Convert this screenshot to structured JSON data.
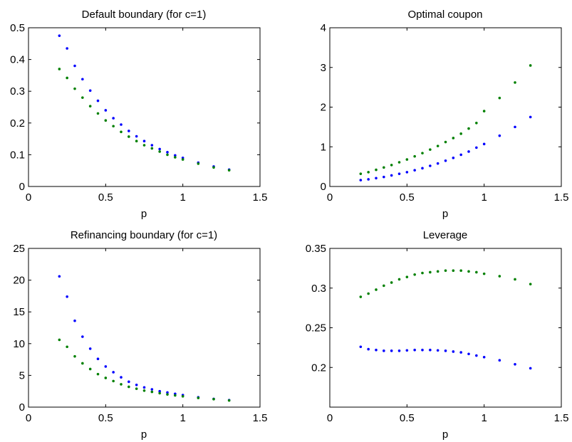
{
  "chart_data": [
    {
      "type": "scatter",
      "title": "Default boundary (for c=1)",
      "xlabel": "p",
      "ylabel": "",
      "xlim": [
        0,
        1.5
      ],
      "ylim": [
        0,
        0.5
      ],
      "xticks": [
        "0",
        "0.5",
        "1",
        "1.5"
      ],
      "yticks": [
        "0",
        "0.1",
        "0.2",
        "0.3",
        "0.4",
        "0.5"
      ],
      "series": [
        {
          "color": "#0000ff",
          "points": [
            [
              0.2,
              0.475
            ],
            [
              0.25,
              0.435
            ],
            [
              0.3,
              0.38
            ],
            [
              0.35,
              0.338
            ],
            [
              0.4,
              0.302
            ],
            [
              0.45,
              0.27
            ],
            [
              0.5,
              0.24
            ],
            [
              0.55,
              0.215
            ],
            [
              0.6,
              0.195
            ],
            [
              0.65,
              0.175
            ],
            [
              0.7,
              0.158
            ],
            [
              0.75,
              0.143
            ],
            [
              0.8,
              0.13
            ],
            [
              0.85,
              0.118
            ],
            [
              0.9,
              0.108
            ],
            [
              0.95,
              0.098
            ],
            [
              1.0,
              0.09
            ],
            [
              1.1,
              0.075
            ],
            [
              1.2,
              0.063
            ],
            [
              1.3,
              0.053
            ]
          ]
        },
        {
          "color": "#008000",
          "points": [
            [
              0.2,
              0.37
            ],
            [
              0.25,
              0.342
            ],
            [
              0.3,
              0.308
            ],
            [
              0.35,
              0.28
            ],
            [
              0.4,
              0.253
            ],
            [
              0.45,
              0.23
            ],
            [
              0.5,
              0.208
            ],
            [
              0.55,
              0.19
            ],
            [
              0.6,
              0.172
            ],
            [
              0.65,
              0.157
            ],
            [
              0.7,
              0.143
            ],
            [
              0.75,
              0.13
            ],
            [
              0.8,
              0.12
            ],
            [
              0.85,
              0.11
            ],
            [
              0.9,
              0.1
            ],
            [
              0.95,
              0.092
            ],
            [
              1.0,
              0.085
            ],
            [
              1.1,
              0.072
            ],
            [
              1.2,
              0.06
            ],
            [
              1.3,
              0.051
            ]
          ]
        }
      ]
    },
    {
      "type": "scatter",
      "title": "Optimal coupon",
      "xlabel": "p",
      "ylabel": "",
      "xlim": [
        0,
        1.5
      ],
      "ylim": [
        0,
        4
      ],
      "xticks": [
        "0",
        "0.5",
        "1",
        "1.5"
      ],
      "yticks": [
        "0",
        "1",
        "2",
        "3",
        "4"
      ],
      "series": [
        {
          "color": "#0000ff",
          "points": [
            [
              0.2,
              0.16
            ],
            [
              0.25,
              0.18
            ],
            [
              0.3,
              0.21
            ],
            [
              0.35,
              0.24
            ],
            [
              0.4,
              0.28
            ],
            [
              0.45,
              0.32
            ],
            [
              0.5,
              0.36
            ],
            [
              0.55,
              0.41
            ],
            [
              0.6,
              0.46
            ],
            [
              0.65,
              0.52
            ],
            [
              0.7,
              0.58
            ],
            [
              0.75,
              0.65
            ],
            [
              0.8,
              0.72
            ],
            [
              0.85,
              0.8
            ],
            [
              0.9,
              0.88
            ],
            [
              0.95,
              0.98
            ],
            [
              1.0,
              1.07
            ],
            [
              1.1,
              1.28
            ],
            [
              1.2,
              1.5
            ],
            [
              1.3,
              1.75
            ]
          ]
        },
        {
          "color": "#008000",
          "points": [
            [
              0.2,
              0.32
            ],
            [
              0.25,
              0.36
            ],
            [
              0.3,
              0.42
            ],
            [
              0.35,
              0.48
            ],
            [
              0.4,
              0.54
            ],
            [
              0.45,
              0.61
            ],
            [
              0.5,
              0.68
            ],
            [
              0.55,
              0.76
            ],
            [
              0.6,
              0.84
            ],
            [
              0.65,
              0.93
            ],
            [
              0.7,
              1.02
            ],
            [
              0.75,
              1.12
            ],
            [
              0.8,
              1.22
            ],
            [
              0.85,
              1.33
            ],
            [
              0.9,
              1.46
            ],
            [
              0.95,
              1.6
            ],
            [
              1.0,
              1.9
            ],
            [
              1.1,
              2.23
            ],
            [
              1.2,
              2.62
            ],
            [
              1.3,
              3.05
            ]
          ]
        }
      ]
    },
    {
      "type": "scatter",
      "title": "Refinancing boundary (for c=1)",
      "xlabel": "p",
      "ylabel": "",
      "xlim": [
        0,
        1.5
      ],
      "ylim": [
        0,
        25
      ],
      "xticks": [
        "0",
        "0.5",
        "1",
        "1.5"
      ],
      "yticks": [
        "0",
        "5",
        "10",
        "15",
        "20",
        "25"
      ],
      "series": [
        {
          "color": "#0000ff",
          "points": [
            [
              0.2,
              20.6
            ],
            [
              0.25,
              17.4
            ],
            [
              0.3,
              13.6
            ],
            [
              0.35,
              11.1
            ],
            [
              0.4,
              9.2
            ],
            [
              0.45,
              7.6
            ],
            [
              0.5,
              6.4
            ],
            [
              0.55,
              5.5
            ],
            [
              0.6,
              4.7
            ],
            [
              0.65,
              4.0
            ],
            [
              0.7,
              3.5
            ],
            [
              0.75,
              3.1
            ],
            [
              0.8,
              2.8
            ],
            [
              0.85,
              2.5
            ],
            [
              0.9,
              2.3
            ],
            [
              0.95,
              2.1
            ],
            [
              1.0,
              1.9
            ],
            [
              1.1,
              1.55
            ],
            [
              1.2,
              1.3
            ],
            [
              1.3,
              1.1
            ]
          ]
        },
        {
          "color": "#008000",
          "points": [
            [
              0.2,
              10.6
            ],
            [
              0.25,
              9.5
            ],
            [
              0.3,
              8.0
            ],
            [
              0.35,
              6.9
            ],
            [
              0.4,
              6.0
            ],
            [
              0.45,
              5.2
            ],
            [
              0.5,
              4.6
            ],
            [
              0.55,
              4.1
            ],
            [
              0.6,
              3.6
            ],
            [
              0.65,
              3.2
            ],
            [
              0.7,
              2.9
            ],
            [
              0.75,
              2.6
            ],
            [
              0.8,
              2.4
            ],
            [
              0.85,
              2.2
            ],
            [
              0.9,
              2.0
            ],
            [
              0.95,
              1.85
            ],
            [
              1.0,
              1.7
            ],
            [
              1.1,
              1.45
            ],
            [
              1.2,
              1.25
            ],
            [
              1.3,
              1.05
            ]
          ]
        }
      ]
    },
    {
      "type": "scatter",
      "title": "Leverage",
      "xlabel": "p",
      "ylabel": "",
      "xlim": [
        0,
        1.5
      ],
      "ylim": [
        0.15,
        0.35
      ],
      "xticks": [
        "0",
        "0.5",
        "1",
        "1.5"
      ],
      "yticks": [
        "0.2",
        "0.25",
        "0.3",
        "0.35"
      ],
      "ytick_values": [
        0.2,
        0.25,
        0.3,
        0.35
      ],
      "series": [
        {
          "color": "#0000ff",
          "points": [
            [
              0.2,
              0.226
            ],
            [
              0.25,
              0.223
            ],
            [
              0.3,
              0.222
            ],
            [
              0.35,
              0.221
            ],
            [
              0.4,
              0.221
            ],
            [
              0.45,
              0.221
            ],
            [
              0.5,
              0.2215
            ],
            [
              0.55,
              0.222
            ],
            [
              0.6,
              0.222
            ],
            [
              0.65,
              0.222
            ],
            [
              0.7,
              0.2215
            ],
            [
              0.75,
              0.221
            ],
            [
              0.8,
              0.22
            ],
            [
              0.85,
              0.219
            ],
            [
              0.9,
              0.217
            ],
            [
              0.95,
              0.215
            ],
            [
              1.0,
              0.213
            ],
            [
              1.1,
              0.209
            ],
            [
              1.2,
              0.204
            ],
            [
              1.3,
              0.199
            ]
          ]
        },
        {
          "color": "#008000",
          "points": [
            [
              0.2,
              0.289
            ],
            [
              0.25,
              0.293
            ],
            [
              0.3,
              0.298
            ],
            [
              0.35,
              0.303
            ],
            [
              0.4,
              0.307
            ],
            [
              0.45,
              0.311
            ],
            [
              0.5,
              0.314
            ],
            [
              0.55,
              0.317
            ],
            [
              0.6,
              0.319
            ],
            [
              0.65,
              0.32
            ],
            [
              0.7,
              0.321
            ],
            [
              0.75,
              0.322
            ],
            [
              0.8,
              0.322
            ],
            [
              0.85,
              0.322
            ],
            [
              0.9,
              0.321
            ],
            [
              0.95,
              0.32
            ],
            [
              1.0,
              0.318
            ],
            [
              1.1,
              0.315
            ],
            [
              1.2,
              0.311
            ],
            [
              1.3,
              0.305
            ]
          ]
        }
      ]
    }
  ]
}
